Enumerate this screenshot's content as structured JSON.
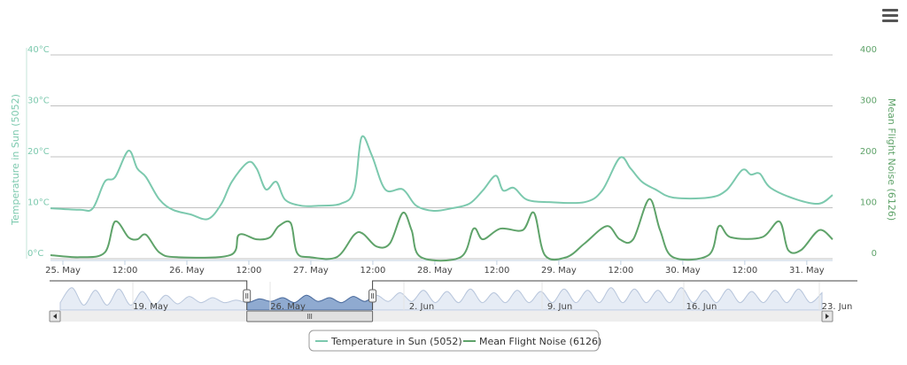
{
  "chart_data": {
    "type": "line",
    "x_unit": "hours since 25 May 00:00",
    "x_range": [
      -2.4,
      149.0
    ],
    "x_tick_labels": [
      "25. May",
      "12:00",
      "26. May",
      "12:00",
      "27. May",
      "12:00",
      "28. May",
      "12:00",
      "29. May",
      "12:00",
      "30. May",
      "12:00",
      "31. May"
    ],
    "x_tick_hours": [
      0,
      12,
      24,
      36,
      48,
      60,
      72,
      84,
      96,
      108,
      120,
      132,
      144
    ],
    "y_left": {
      "title": "Temperature in Sun (5052)",
      "range": [
        0,
        40
      ],
      "ticks": [
        "0°C",
        "10°C",
        "20°C",
        "30°C",
        "40°C"
      ],
      "tick_values": [
        0,
        10,
        20,
        30,
        40
      ]
    },
    "y_right": {
      "title": "Mean Flight Noise (6126)",
      "range": [
        0,
        400
      ],
      "ticks": [
        "0",
        "100",
        "200",
        "300",
        "400"
      ],
      "tick_values": [
        0,
        100,
        200,
        300,
        400
      ]
    },
    "grid": true,
    "legend_position": "bottom-center",
    "series": [
      {
        "name": "Temperature in Sun (5052)",
        "axis": "left",
        "color": "#7cc9ae",
        "x": [
          -2.4,
          3.3,
          5.8,
          8.1,
          10.1,
          12.7,
          14.4,
          16.1,
          18.7,
          21.3,
          24.7,
          28.1,
          30.7,
          32.7,
          35.8,
          37.5,
          39.3,
          41.3,
          43.0,
          46.1,
          49.5,
          53.8,
          56.4,
          57.8,
          59.8,
          62.4,
          65.8,
          68.4,
          71.8,
          75.3,
          78.7,
          81.3,
          83.8,
          85.2,
          87.3,
          89.8,
          94.1,
          101.0,
          104.4,
          107.8,
          109.9,
          112.1,
          114.7,
          118.1,
          125.0,
          128.4,
          131.5,
          133.2,
          134.9,
          137.0,
          142.1,
          146.4,
          149.0
        ],
        "y": [
          9.9,
          9.6,
          9.9,
          15.1,
          16.0,
          21.2,
          17.7,
          16.0,
          11.6,
          9.6,
          8.7,
          7.8,
          10.8,
          15.1,
          18.9,
          17.7,
          13.6,
          15.1,
          11.6,
          10.4,
          10.4,
          10.8,
          13.4,
          23.8,
          20.3,
          13.6,
          13.6,
          10.4,
          9.4,
          9.9,
          10.8,
          13.4,
          16.3,
          13.4,
          13.9,
          11.6,
          11.1,
          11.1,
          13.4,
          19.8,
          17.7,
          15.1,
          13.6,
          12.0,
          12.0,
          13.4,
          17.4,
          16.5,
          16.7,
          13.9,
          11.6,
          10.8,
          12.5
        ]
      },
      {
        "name": "Mean Flight Noise (6126)",
        "axis": "right",
        "color": "#5fa36a",
        "x": [
          -2.4,
          3.3,
          8.1,
          10.1,
          12.7,
          14.4,
          16.1,
          18.7,
          22.1,
          32.4,
          34.1,
          37.5,
          40.1,
          41.8,
          44.1,
          45.3,
          47.8,
          53.0,
          56.4,
          58.1,
          60.7,
          63.3,
          65.8,
          67.5,
          69.3,
          77.0,
          79.5,
          81.3,
          84.7,
          89.0,
          91.2,
          93.3,
          97.5,
          101.0,
          105.3,
          107.8,
          110.4,
          113.5,
          115.6,
          118.1,
          125.0,
          127.0,
          129.3,
          135.3,
          138.7,
          140.4,
          142.9,
          146.4,
          149.0
        ],
        "y": [
          7,
          3,
          12,
          73,
          42,
          38,
          47,
          12,
          3,
          7,
          47,
          38,
          42,
          64,
          70,
          12,
          3,
          3,
          47,
          49,
          24,
          30,
          90,
          56,
          3,
          3,
          59,
          38,
          59,
          56,
          90,
          7,
          3,
          30,
          64,
          38,
          38,
          117,
          56,
          3,
          7,
          64,
          42,
          42,
          73,
          17,
          17,
          56,
          38
        ]
      }
    ],
    "navigator": {
      "labels": [
        "19. May",
        "26. May",
        "2. Jun",
        "9. Jun",
        "16. Jun",
        "23. Jun"
      ],
      "values": [
        0.3,
        0.9,
        0.2,
        0.8,
        0.2,
        0.85,
        0.2,
        0.75,
        0.2,
        0.6,
        0.25,
        0.55,
        0.3,
        0.5,
        0.3,
        0.4,
        0.3,
        0.45,
        0.35,
        0.5,
        0.3,
        0.6,
        0.35,
        0.5,
        0.3,
        0.55,
        0.35,
        0.6,
        0.35,
        0.7,
        0.35,
        0.8,
        0.3,
        0.75,
        0.3,
        0.85,
        0.3,
        0.7,
        0.3,
        0.8,
        0.3,
        0.75,
        0.3,
        0.85,
        0.3,
        0.8,
        0.3,
        0.9,
        0.3,
        0.85,
        0.3,
        0.8,
        0.3,
        0.9,
        0.3,
        0.8,
        0.3,
        0.85,
        0.3,
        0.75,
        0.3,
        0.8,
        0.3,
        0.85,
        0.3,
        0.7
      ],
      "selected_fraction": [
        0.245,
        0.41
      ]
    }
  },
  "menu_icon": "hamburger-menu-icon"
}
